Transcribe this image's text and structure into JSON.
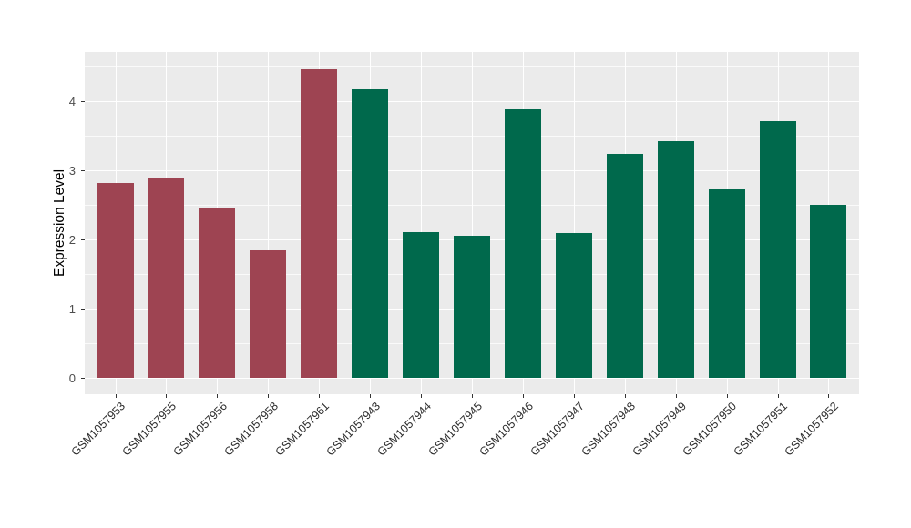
{
  "chart_data": {
    "type": "bar",
    "title": "",
    "xlabel": "",
    "ylabel": "Expression Level",
    "categories": [
      "GSM1057953",
      "GSM1057955",
      "GSM1057956",
      "GSM1057958",
      "GSM1057961",
      "GSM1057943",
      "GSM1057944",
      "GSM1057945",
      "GSM1057946",
      "GSM1057947",
      "GSM1057948",
      "GSM1057949",
      "GSM1057950",
      "GSM1057951",
      "GSM1057952"
    ],
    "values": [
      2.82,
      2.9,
      2.47,
      1.85,
      4.47,
      4.17,
      2.11,
      2.06,
      3.89,
      2.1,
      3.24,
      3.43,
      2.73,
      3.72,
      2.5
    ],
    "bar_groups": [
      0,
      0,
      0,
      0,
      0,
      1,
      1,
      1,
      1,
      1,
      1,
      1,
      1,
      1,
      1
    ],
    "group_colors": [
      "#9E4452",
      "#00694C"
    ],
    "ytick_labels": [
      "0",
      "1",
      "2",
      "3",
      "4"
    ],
    "ytick_values": [
      0,
      1,
      2,
      3,
      4
    ],
    "ylim": [
      0,
      4.72
    ],
    "grid": "on",
    "legend": "none",
    "panel_bg": "#EBEBEB",
    "grid_color": "#FFFFFF",
    "tick_color": "#333333",
    "axis_text_color": "#2b2b2b"
  }
}
